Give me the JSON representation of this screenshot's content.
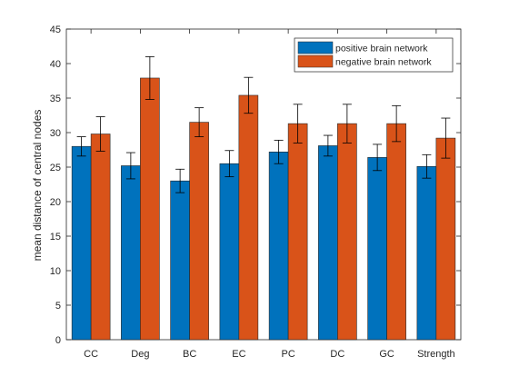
{
  "chart_data": {
    "type": "bar",
    "ylabel": "mean distance of central nodes",
    "xlabel": "",
    "title": "",
    "ylim": [
      0,
      45
    ],
    "yticks": [
      0,
      5,
      10,
      15,
      20,
      25,
      30,
      35,
      40,
      45
    ],
    "grid": false,
    "legend_position": "top-right",
    "categories": [
      "CC",
      "Deg",
      "BC",
      "EC",
      "PC",
      "DC",
      "GC",
      "Strength"
    ],
    "series": [
      {
        "name": "positive brain network",
        "color": "#0072BD",
        "values": [
          28.0,
          25.2,
          23.0,
          25.5,
          27.2,
          28.1,
          26.4,
          25.1
        ],
        "error": [
          1.4,
          1.9,
          1.7,
          1.9,
          1.7,
          1.5,
          1.9,
          1.7
        ]
      },
      {
        "name": "negative brain network",
        "color": "#D95319",
        "values": [
          29.8,
          37.9,
          31.5,
          35.4,
          31.3,
          31.3,
          31.3,
          29.2
        ],
        "error": [
          2.5,
          3.1,
          2.1,
          2.6,
          2.8,
          2.8,
          2.6,
          2.9
        ]
      }
    ]
  }
}
